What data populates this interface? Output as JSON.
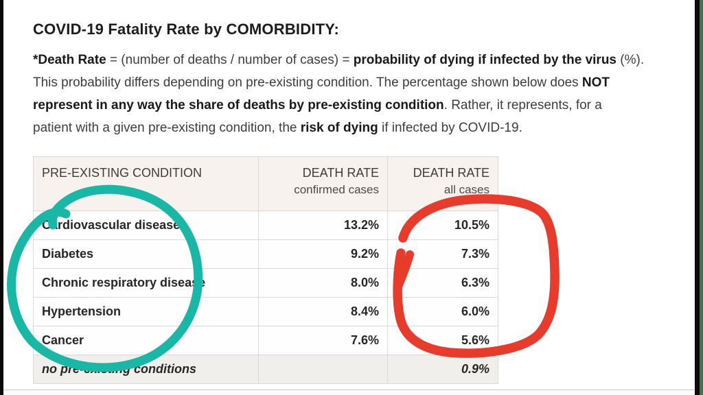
{
  "header": {
    "title": "COVID-19 Fatality Rate by COMORBIDITY:"
  },
  "intro": {
    "lines": [
      [
        {
          "text": "*Death Rate",
          "bold": true
        },
        {
          "text": " = (number of deaths / number of cases) = ",
          "bold": false
        },
        {
          "text": "probability of dying if infected by the virus",
          "bold": true
        },
        {
          "text": " (%).",
          "bold": false
        }
      ],
      [
        {
          "text": "This probability differs depending on pre-existing condition. The percentage shown below does ",
          "bold": false
        },
        {
          "text": "NOT",
          "bold": true
        }
      ],
      [
        {
          "text": "represent in any way the share of deaths by pre-existing condition",
          "bold": true
        },
        {
          "text": ". Rather, it represents, for a",
          "bold": false
        }
      ],
      [
        {
          "text": "patient with a given pre-existing condition, the ",
          "bold": false
        },
        {
          "text": "risk of dying",
          "bold": true
        },
        {
          "text": " if infected by COVID-19.",
          "bold": false
        }
      ]
    ]
  },
  "table": {
    "columns": [
      {
        "label": "PRE-EXISTING CONDITION",
        "sub": ""
      },
      {
        "label": "DEATH RATE",
        "sub": "confirmed cases"
      },
      {
        "label": "DEATH RATE",
        "sub": "all cases"
      }
    ],
    "rows": [
      {
        "condition": "Cardiovascular disease",
        "confirmed": "13.2%",
        "all": "10.5%",
        "muted": false
      },
      {
        "condition": "Diabetes",
        "confirmed": "9.2%",
        "all": "7.3%",
        "muted": false
      },
      {
        "condition": "Chronic respiratory disease",
        "confirmed": "8.0%",
        "all": "6.3%",
        "muted": false
      },
      {
        "condition": "Hypertension",
        "confirmed": "8.4%",
        "all": "6.0%",
        "muted": false
      },
      {
        "condition": "Cancer",
        "confirmed": "7.6%",
        "all": "5.6%",
        "muted": false
      },
      {
        "condition": "no pre-existing conditions",
        "confirmed": "",
        "all": "0.9%",
        "muted": true
      }
    ]
  },
  "annotations": {
    "teal_color": "#18b7a6",
    "red_color": "#e73b2b",
    "teal_meaning": "hand-drawn circle around pre-existing condition names",
    "red_meaning": "hand-drawn circle around death rate all-cases values"
  },
  "chart_data": {
    "type": "table",
    "title": "COVID-19 Fatality Rate by COMORBIDITY",
    "categories": [
      "Cardiovascular disease",
      "Diabetes",
      "Chronic respiratory disease",
      "Hypertension",
      "Cancer",
      "no pre-existing conditions"
    ],
    "series": [
      {
        "name": "DEATH RATE confirmed cases",
        "values": [
          13.2,
          9.2,
          8.0,
          8.4,
          7.6,
          null
        ]
      },
      {
        "name": "DEATH RATE all cases",
        "values": [
          10.5,
          7.3,
          6.3,
          6.0,
          5.6,
          0.9
        ]
      }
    ]
  }
}
